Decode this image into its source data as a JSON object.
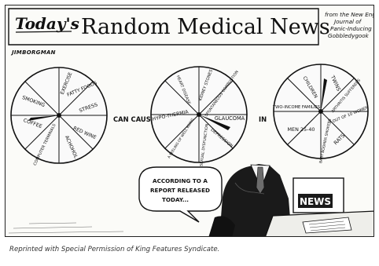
{
  "header": {
    "todays": "Today's",
    "title": "Random Medical News",
    "source_line1": "from the New England",
    "source_line2": "Journal of",
    "source_line3": "Panic-Inducing",
    "source_line4": "Gobbledygook",
    "signature": "JIMBORGMAN"
  },
  "wheel1": {
    "segments": [
      "EXERCISE",
      "FATTY FOODS",
      "STRESS",
      "RED WINE",
      "ACHOHOL",
      "COMPUTER TERMINALS",
      "COFFEE",
      "SMOKING"
    ]
  },
  "connector1": "CAN CAUSE",
  "wheel2": {
    "segments": [
      "KIDNEY STONES",
      "SPONTANEOUS COMBUSTION",
      "GLAUCOMA",
      "DEPRESSION",
      "SEXUAL DYSFUNCTION",
      "A FEELING OF WELL BEING",
      "HYPO-THERMIA",
      "HEART DISEASE"
    ]
  },
  "connector2": "IN",
  "wheel3": {
    "segments": [
      "TWINS",
      "ARTHRITIS SUFFERERS",
      "7 OUT OF 10 WOMEN",
      "RATS",
      "BABY BOOMER SMOKERS",
      "MEN 25-40",
      "TWO-INCOME FAMILIES",
      "CHILDREN"
    ]
  },
  "speech": {
    "line1": "ACCORDING TO A",
    "line2": "REPORT RELEASED",
    "line3": "TODAY..."
  },
  "desk_sign": "NEWS",
  "credit": "Reprinted with Special Permission of King Features Syndicate."
}
